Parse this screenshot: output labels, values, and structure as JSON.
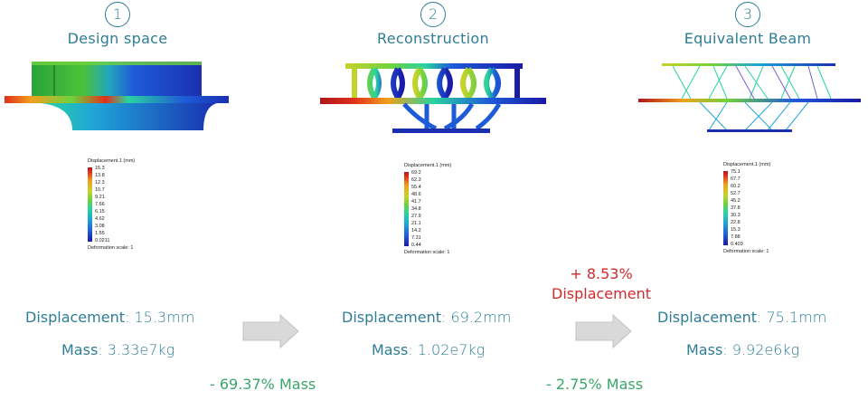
{
  "stages": [
    {
      "number": "1",
      "title": "Design space",
      "legend": {
        "title": "Displacement.1 (mm)",
        "ticks": [
          "15.3",
          "13.8",
          "12.3",
          "10.7",
          "9.21",
          "7.66",
          "6.15",
          "4.62",
          "3.08",
          "1.55",
          "0.0211"
        ],
        "footer": "Deformation scale: 1"
      },
      "displacement_label": "Displacement",
      "displacement_value": ": 15.3mm",
      "mass_label": "Mass",
      "mass_value": ": 3.33e7kg"
    },
    {
      "number": "2",
      "title": "Reconstruction",
      "legend": {
        "title": "Displacement.1 (mm)",
        "ticks": [
          "69.2",
          "62.3",
          "55.4",
          "48.6",
          "41.7",
          "34.8",
          "27.9",
          "21.1",
          "14.2",
          "7.31",
          "0.44"
        ],
        "footer": "Deformation scale: 1"
      },
      "displacement_label": "Displacement",
      "displacement_value": ": 69.2mm",
      "mass_label": "Mass",
      "mass_value": ": 1.02e7kg"
    },
    {
      "number": "3",
      "title": "Equivalent Beam",
      "legend": {
        "title": "Displacement.1 (mm)",
        "ticks": [
          "75.1",
          "67.7",
          "60.2",
          "52.7",
          "45.2",
          "37.8",
          "30.3",
          "22.8",
          "15.3",
          "7.88",
          "0.403"
        ],
        "footer": "Deformation scale: 1"
      },
      "displacement_label": "Displacement",
      "displacement_value": ": 75.1mm",
      "mass_label": "Mass",
      "mass_value": ": 9.92e6kg"
    }
  ],
  "transitions": [
    {
      "mass_change": "- 69.37% Mass"
    },
    {
      "displacement_change_1": "+ 8.53%",
      "displacement_change_2": "Displacement",
      "mass_change": "- 2.75% Mass"
    }
  ],
  "colors": {
    "accent": "#2e7d95",
    "positive": "#3aa66a",
    "negative": "#cf2b2b",
    "arrow": "#d9d9d9"
  }
}
